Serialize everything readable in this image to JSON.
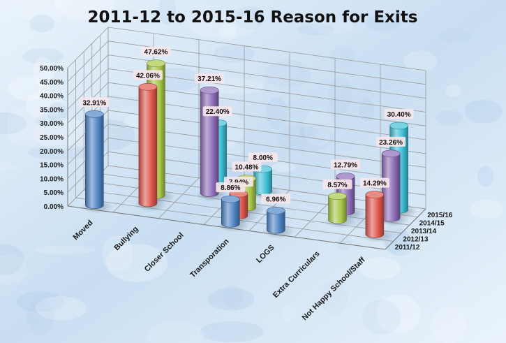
{
  "colors": {
    "background_light": "#eaf3fb",
    "background_dark": "#c9def2",
    "grid": "#9a9a9a",
    "label_box": "#f6e6ea",
    "series_2011_12": "#4f86c6",
    "series_2012_13": "#e0584f",
    "series_2013_14": "#a9c94a",
    "series_2014_15": "#8d6cb8",
    "series_2015_16": "#3fc0d6"
  },
  "chart_data": {
    "type": "bar",
    "variant": "3d-cylinder",
    "title": "2011-12 to 2015-16 Reason for Exits",
    "xlabel": "",
    "ylabel": "",
    "ylim": [
      0,
      50
    ],
    "y_ticks": [
      "0.00%",
      "5.00%",
      "10.00%",
      "15.00%",
      "20.00%",
      "25.00%",
      "30.00%",
      "35.00%",
      "40.00%",
      "45.00%",
      "50.00%"
    ],
    "grid": true,
    "legend": "none (series named on depth axis)",
    "categories": [
      "Moved",
      "Bullying",
      "Closer School",
      "Transporation",
      "LOGS",
      "Extra Curriculars",
      "Not Happy School/Staff"
    ],
    "series": [
      {
        "name": "2011/12",
        "values": [
          32.91,
          null,
          null,
          8.86,
          6.96,
          null,
          null
        ],
        "labels": [
          "32.91%",
          null,
          null,
          "8.86%",
          "6.96%",
          null,
          null
        ]
      },
      {
        "name": "2012/13",
        "values": [
          null,
          42.06,
          null,
          7.94,
          null,
          null,
          14.29
        ],
        "labels": [
          null,
          "42.06%",
          null,
          "7.94%",
          null,
          null,
          "14.29%"
        ]
      },
      {
        "name": "2013/14",
        "values": [
          null,
          47.62,
          null,
          10.48,
          null,
          8.57,
          null
        ],
        "labels": [
          null,
          "47.62%",
          null,
          "10.48%",
          null,
          "8.57%",
          null
        ]
      },
      {
        "name": "2014/15",
        "values": [
          null,
          null,
          37.21,
          null,
          null,
          12.79,
          23.26
        ],
        "labels": [
          null,
          null,
          "37.21%",
          null,
          null,
          "12.79%",
          "23.26%"
        ]
      },
      {
        "name": "2015/16",
        "values": [
          null,
          null,
          22.4,
          8.0,
          null,
          null,
          30.4
        ],
        "labels": [
          null,
          null,
          "22.40%",
          "8.00%",
          null,
          null,
          "30.40%"
        ]
      }
    ]
  }
}
